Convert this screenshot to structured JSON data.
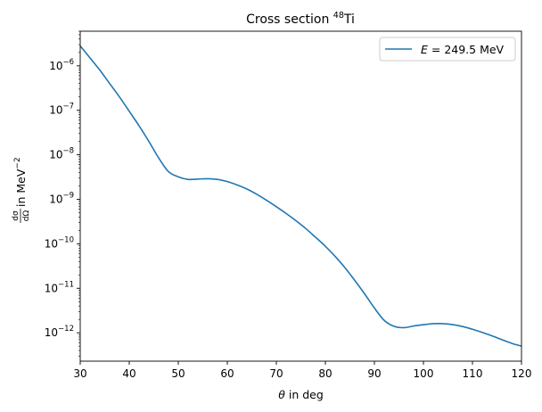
{
  "chart_data": {
    "type": "line",
    "title": "Cross section ⁴⁸Ti",
    "title_base": "Cross section ",
    "title_sup": "48",
    "title_element": "Ti",
    "xlabel": "θ in deg",
    "ylabel": "dσ/dΩ in MeV⁻²",
    "xlim": [
      30,
      120
    ],
    "ylim": [
      2.3e-13,
      6e-06
    ],
    "yscale": "log",
    "grid": false,
    "legend_position": "top-right",
    "x_ticks": [
      30,
      40,
      50,
      60,
      70,
      80,
      90,
      100,
      110,
      120
    ],
    "y_ticks": [
      {
        "value": 1e-12,
        "exp": "−12"
      },
      {
        "value": 1e-11,
        "exp": "−11"
      },
      {
        "value": 1e-10,
        "exp": "−10"
      },
      {
        "value": 1e-09,
        "exp": "−9"
      },
      {
        "value": 1e-08,
        "exp": "−8"
      },
      {
        "value": 1e-07,
        "exp": "−7"
      },
      {
        "value": 1e-06,
        "exp": "−6"
      }
    ],
    "series": [
      {
        "name": "E = 249.5 MeV",
        "color": "#1f77b4",
        "x": [
          30,
          32,
          34,
          36,
          38,
          40,
          42,
          44,
          46,
          48,
          50,
          52,
          54,
          56,
          58,
          60,
          62,
          64,
          66,
          68,
          70,
          72,
          74,
          76,
          78,
          80,
          82,
          84,
          86,
          88,
          90,
          92,
          94,
          96,
          98,
          100,
          102,
          104,
          106,
          108,
          110,
          112,
          114,
          116,
          118,
          120
        ],
        "y": [
          2.8e-06,
          1.5e-06,
          8e-07,
          4e-07,
          2e-07,
          9.5e-08,
          4.5e-08,
          2e-08,
          8.5e-09,
          4.2e-09,
          3.2e-09,
          2.8e-09,
          2.85e-09,
          2.9e-09,
          2.8e-09,
          2.5e-09,
          2.1e-09,
          1.7e-09,
          1.3e-09,
          9.5e-10,
          6.8e-10,
          4.8e-10,
          3.3e-10,
          2.2e-10,
          1.4e-10,
          8.8e-11,
          5.2e-11,
          2.9e-11,
          1.5e-11,
          7.5e-12,
          3.6e-12,
          1.9e-12,
          1.4e-12,
          1.3e-12,
          1.42e-12,
          1.52e-12,
          1.6e-12,
          1.6e-12,
          1.52e-12,
          1.38e-12,
          1.2e-12,
          1.02e-12,
          8.5e-13,
          7e-13,
          5.8e-13,
          5e-13
        ]
      }
    ]
  },
  "legend": {
    "var": "E",
    "eq": " = ",
    "value": "249.5 MeV"
  },
  "axes": {
    "xlabel_theta": "θ",
    "xlabel_rest": " in deg",
    "ylabel_num": "dσ",
    "ylabel_den": "dΩ",
    "ylabel_text": " in MeV",
    "ylabel_exp": "−2",
    "ytick_base": "10"
  }
}
